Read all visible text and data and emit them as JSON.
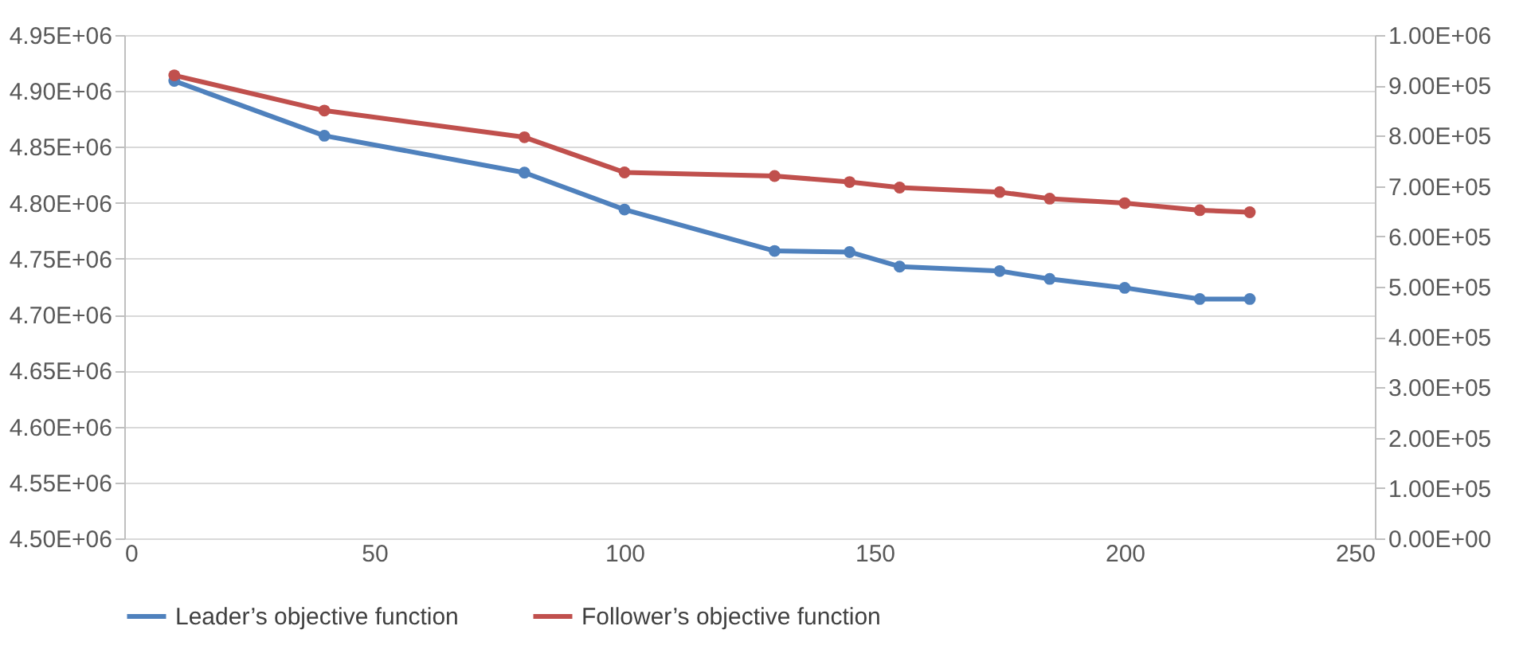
{
  "chart_data": {
    "type": "line",
    "marker": "circle",
    "line_style": "solid",
    "grid": "y",
    "legend": "bottom",
    "x": [
      10,
      40,
      80,
      100,
      130,
      145,
      155,
      175,
      185,
      200,
      215,
      225
    ],
    "xlim": [
      0,
      250
    ],
    "xticks": [
      0,
      50,
      100,
      150,
      200,
      250
    ],
    "ylim": [
      4500000,
      4950000
    ],
    "yticks": [
      {
        "value": 4500000,
        "label": "4.50E+06"
      },
      {
        "value": 4550000,
        "label": "4.55E+06"
      },
      {
        "value": 4600000,
        "label": "4.60E+06"
      },
      {
        "value": 4650000,
        "label": "4.65E+06"
      },
      {
        "value": 4700000,
        "label": "4.70E+06"
      },
      {
        "value": 4750000,
        "label": "4.75E+06"
      },
      {
        "value": 4800000,
        "label": "4.80E+06"
      },
      {
        "value": 4850000,
        "label": "4.85E+06"
      },
      {
        "value": 4900000,
        "label": "4.90E+06"
      },
      {
        "value": 4950000,
        "label": "4.95E+06"
      }
    ],
    "y2lim": [
      0,
      1000000
    ],
    "y2ticks": [
      {
        "value": 0,
        "label": "0.00E+00"
      },
      {
        "value": 100000,
        "label": "1.00E+05"
      },
      {
        "value": 200000,
        "label": "2.00E+05"
      },
      {
        "value": 300000,
        "label": "3.00E+05"
      },
      {
        "value": 400000,
        "label": "4.00E+05"
      },
      {
        "value": 500000,
        "label": "5.00E+05"
      },
      {
        "value": 600000,
        "label": "6.00E+05"
      },
      {
        "value": 700000,
        "label": "7.00E+05"
      },
      {
        "value": 800000,
        "label": "8.00E+05"
      },
      {
        "value": 900000,
        "label": "9.00E+05"
      },
      {
        "value": 1000000,
        "label": "1.00E+06"
      }
    ],
    "series": [
      {
        "name": "Leader’s objective function",
        "color": "#4f81bd",
        "values": [
          4909000,
          4860000,
          4827000,
          4794000,
          4757000,
          4756000,
          4743000,
          4739000,
          4732000,
          4724000,
          4714000,
          4714000
        ]
      },
      {
        "name": "Follower’s objective function",
        "color": "#c0504d",
        "axis": "y2",
        "values": [
          920000,
          850000,
          797000,
          727000,
          720000,
          708000,
          697000,
          688000,
          675000,
          666000,
          652000,
          648000
        ]
      }
    ]
  }
}
